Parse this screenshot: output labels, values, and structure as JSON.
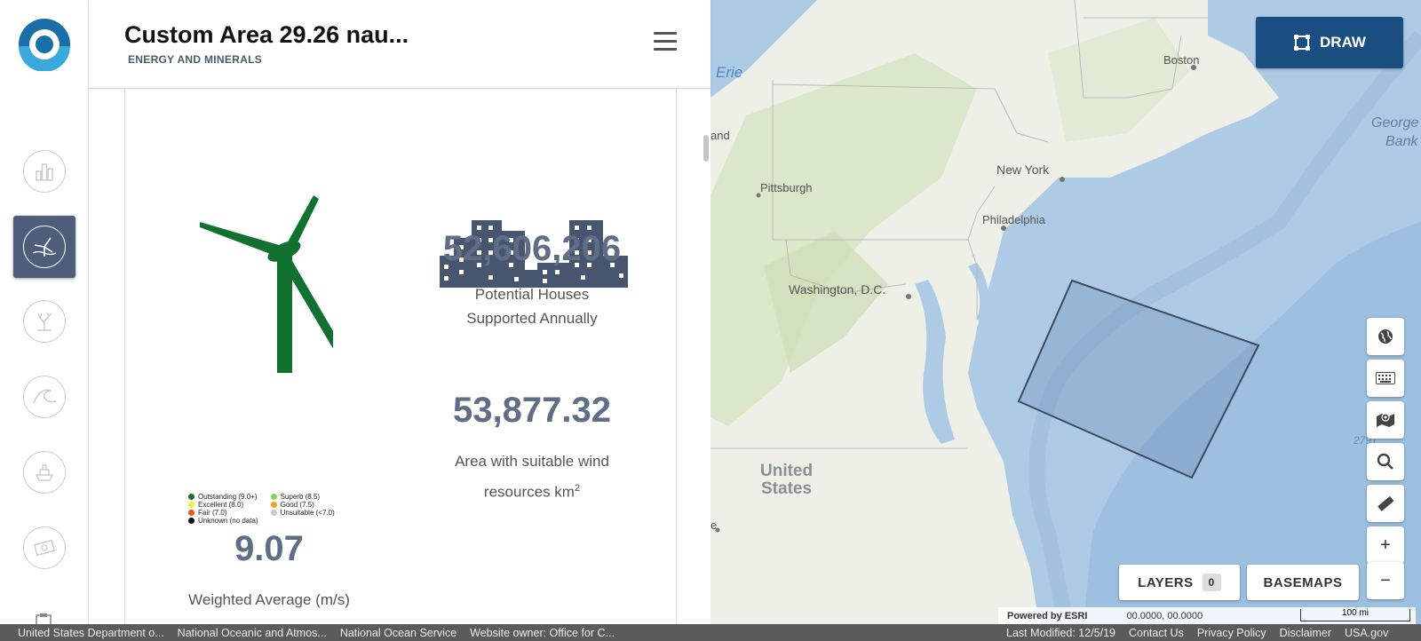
{
  "panel": {
    "title": "Custom Area 29.26 nau...",
    "subtitle": "ENERGY AND MINERALS"
  },
  "stats": {
    "houses_value": "52,606,206",
    "houses_caption_line1": "Potential Houses",
    "houses_caption_line2": "Supported Annually",
    "area_value": "53,877.32",
    "area_caption_line1": "Area with suitable wind",
    "area_caption_line2": "resources km",
    "area_caption_sup": "2",
    "avg_value": "9.07",
    "avg_caption": "Weighted Average (m/s)"
  },
  "legend": {
    "items": [
      {
        "label": "Outstanding (9.0+)",
        "color": "#1a6e2e"
      },
      {
        "label": "Excellent (8.0)",
        "color": "#f2ef3c"
      },
      {
        "label": "Fair (7.0)",
        "color": "#e8561a"
      },
      {
        "label": "Unknown (no data)",
        "color": "#111111"
      },
      {
        "label": "Superb (8.5)",
        "color": "#7fd35a"
      },
      {
        "label": "Good (7.5)",
        "color": "#f0a21e"
      },
      {
        "label": "Unsuitable (<7.0)",
        "color": "#c8c8c8"
      }
    ]
  },
  "rail": {
    "icons": [
      "logo-icon",
      "chart-icon",
      "wind-energy-icon",
      "coral-icon",
      "wave-icon",
      "ship-icon",
      "money-icon",
      "clipboard-icon"
    ]
  },
  "map": {
    "draw_label": "DRAW",
    "layers_label": "LAYERS",
    "layers_count": "0",
    "basemaps_label": "BASEMAPS",
    "powered_by": "Powered by ESRI",
    "coords": "00.0000, 00.0000",
    "scale": "100 mi",
    "labels": {
      "erie": "Erie",
      "boston": "Boston",
      "georges": "George",
      "bank": "Bank",
      "new_york": "New York",
      "pittsburgh": "Pittsburgh",
      "philadelphia": "Philadelphia",
      "washington": "Washington, D.C.",
      "united": "United",
      "states": "States",
      "land": "and",
      "depth": "2791",
      "e": "e"
    },
    "tools": [
      "globe-icon",
      "keyboard-icon",
      "map-layers-icon",
      "search-icon",
      "ruler-icon",
      "zoom-in-icon",
      "zoom-out-icon"
    ],
    "colors": {
      "ocean": "#aecbe6",
      "land": "#eef0e8",
      "draw": "#1a4e80"
    }
  },
  "footer": {
    "left": [
      "United States Department o...",
      "National Oceanic and Atmos...",
      "National Ocean Service",
      "Website owner: Office for C..."
    ],
    "right": [
      "Last Modified: 12/5/19",
      "Contact Us",
      "Privacy Policy",
      "Disclaimer",
      "USA.gov"
    ]
  }
}
